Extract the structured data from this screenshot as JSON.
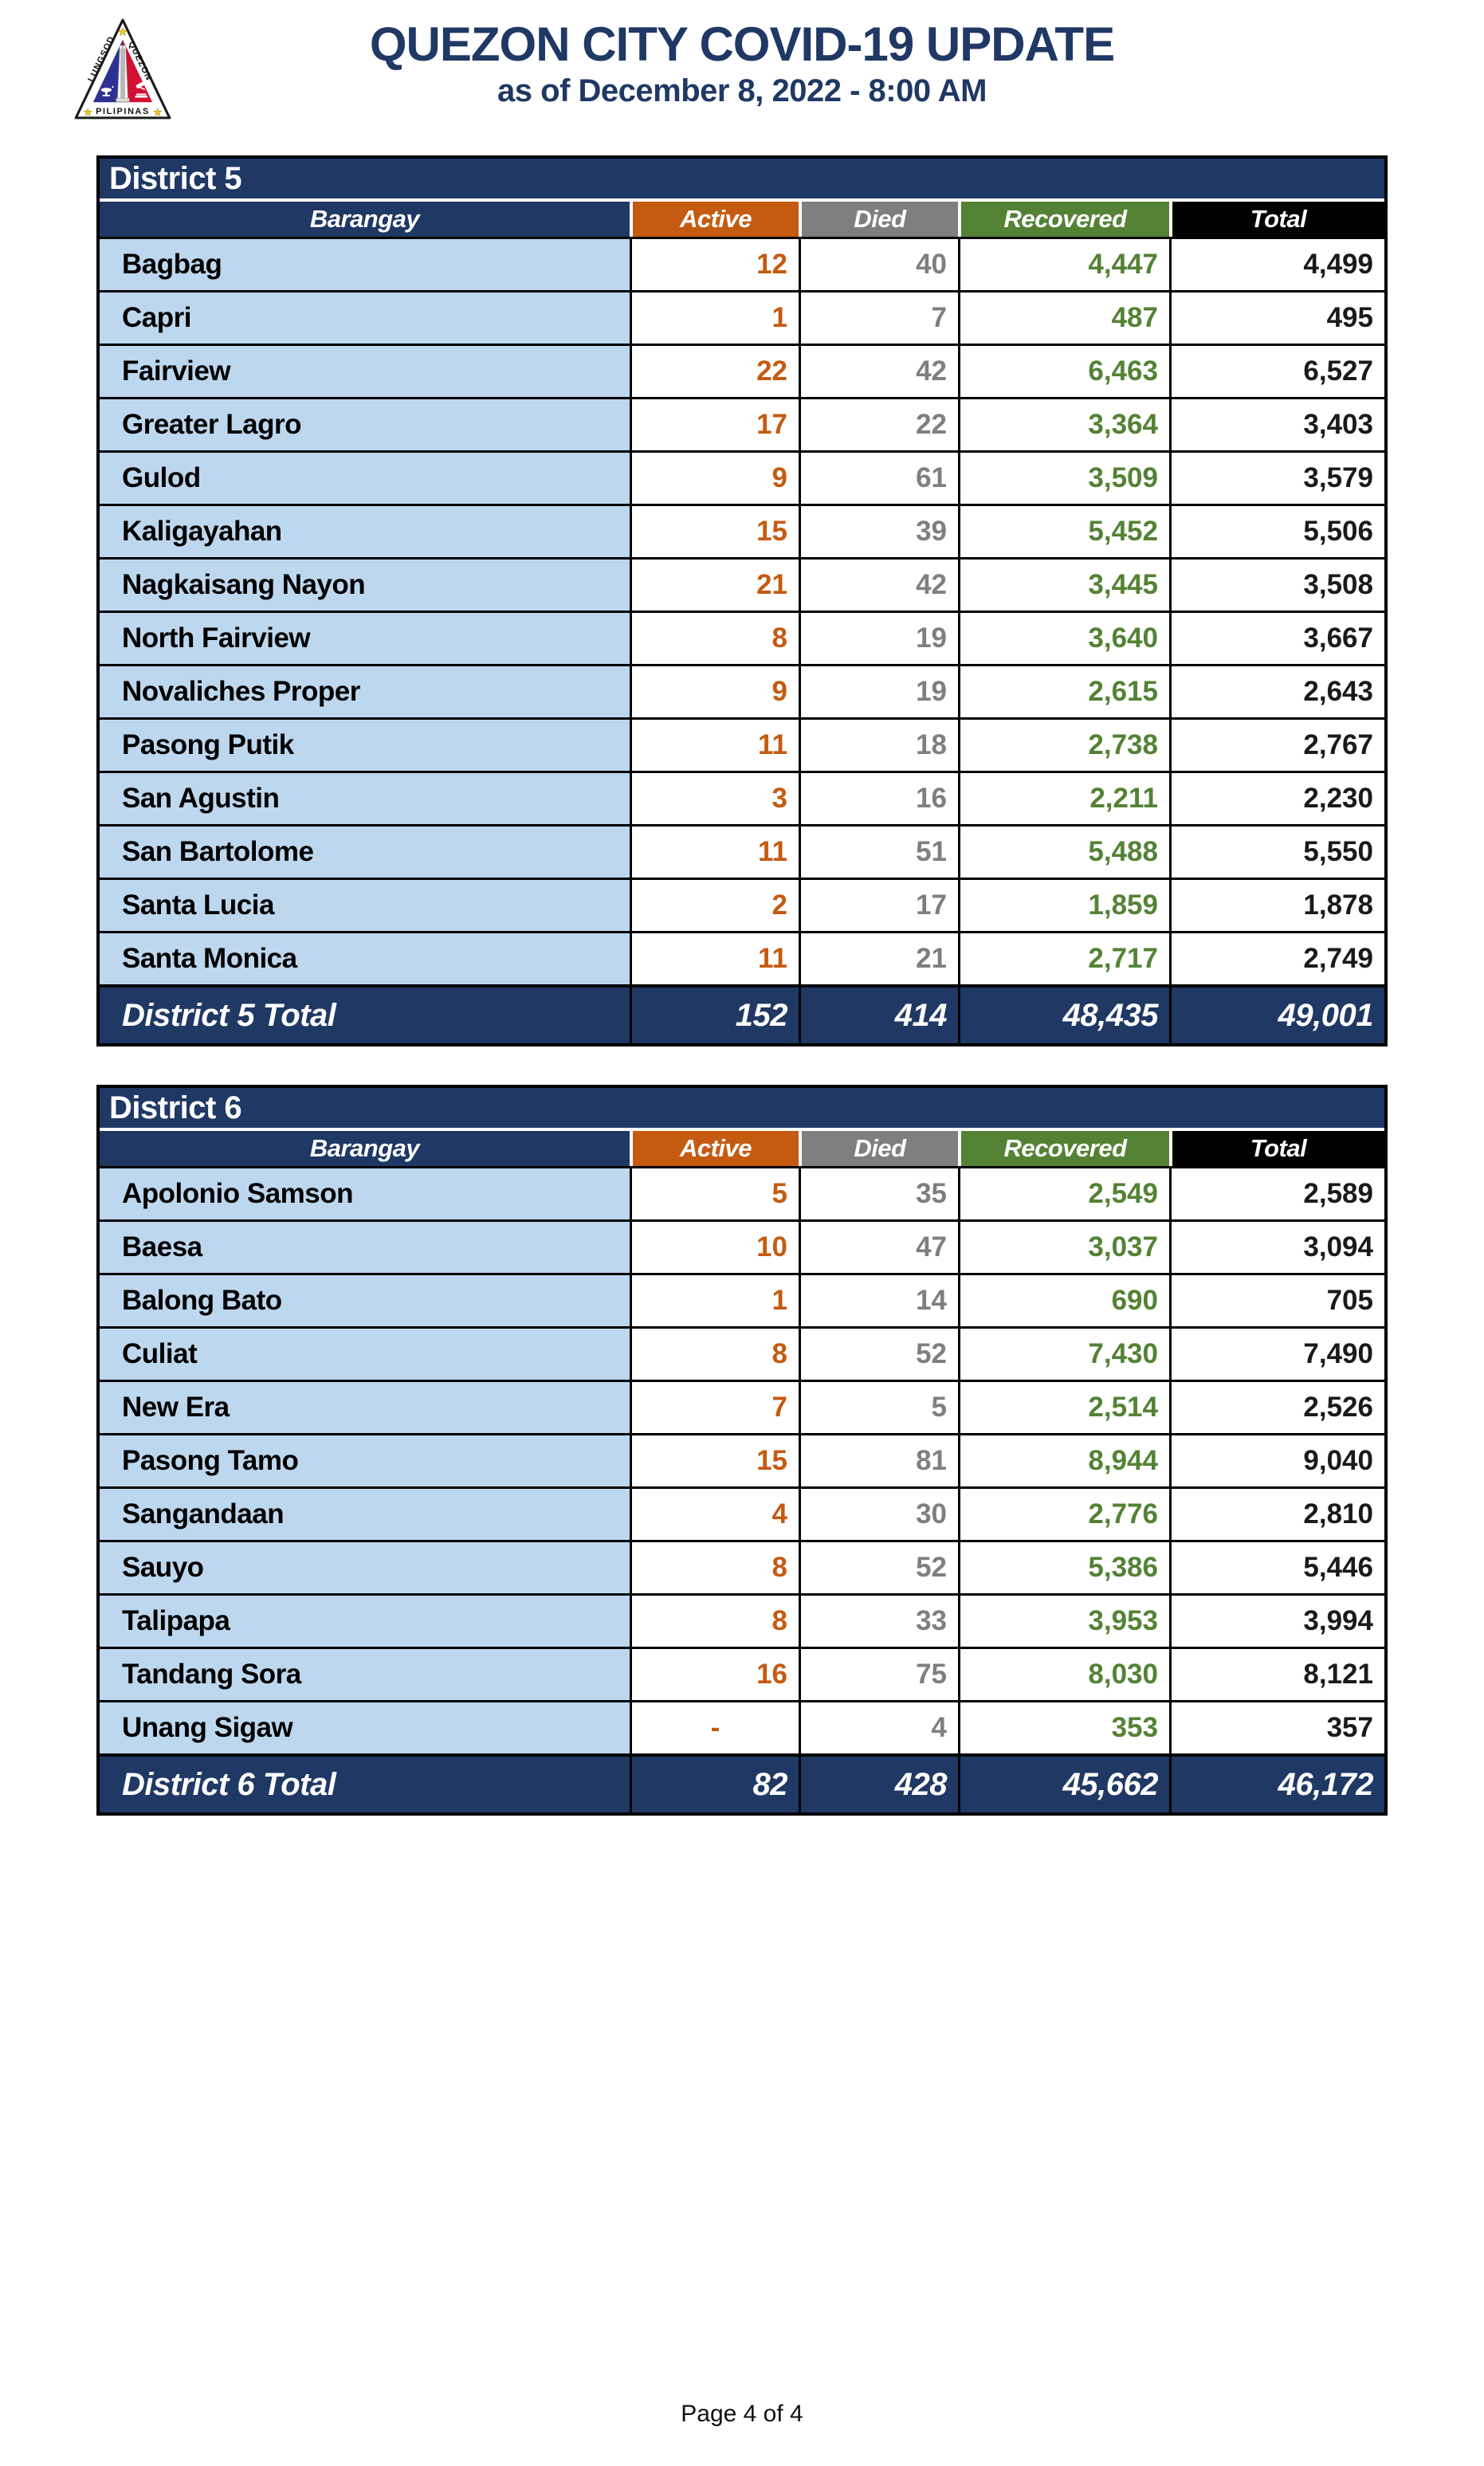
{
  "header": {
    "title": "QUEZON CITY COVID-19 UPDATE",
    "subtitle": "as of December 8, 2022 - 8:00 AM",
    "logo": {
      "left_text": "LUNGSOD",
      "right_text": "QUEZON",
      "bottom_text": "PILIPINAS"
    }
  },
  "columns": {
    "barangay": "Barangay",
    "active": "Active",
    "died": "Died",
    "recovered": "Recovered",
    "total": "Total"
  },
  "colors": {
    "navy": "#1F3864",
    "title_blue": "#1F3864",
    "orange": "#C55A11",
    "gray": "#7F7F7F",
    "green": "#548235",
    "light_blue": "#BDD7EE",
    "header_total_black": "#000000",
    "seal_blue": "#2E3192",
    "seal_red": "#D21034",
    "seal_star_yellow": "#FFCC00"
  },
  "tables": [
    {
      "district": "District 5",
      "total_label": "District 5 Total",
      "rows": [
        [
          "Bagbag",
          "12",
          "40",
          "4,447",
          "4,499"
        ],
        [
          "Capri",
          "1",
          "7",
          "487",
          "495"
        ],
        [
          "Fairview",
          "22",
          "42",
          "6,463",
          "6,527"
        ],
        [
          "Greater Lagro",
          "17",
          "22",
          "3,364",
          "3,403"
        ],
        [
          "Gulod",
          "9",
          "61",
          "3,509",
          "3,579"
        ],
        [
          "Kaligayahan",
          "15",
          "39",
          "5,452",
          "5,506"
        ],
        [
          "Nagkaisang Nayon",
          "21",
          "42",
          "3,445",
          "3,508"
        ],
        [
          "North Fairview",
          "8",
          "19",
          "3,640",
          "3,667"
        ],
        [
          "Novaliches Proper",
          "9",
          "19",
          "2,615",
          "2,643"
        ],
        [
          "Pasong Putik",
          "11",
          "18",
          "2,738",
          "2,767"
        ],
        [
          "San Agustin",
          "3",
          "16",
          "2,211",
          "2,230"
        ],
        [
          "San Bartolome",
          "11",
          "51",
          "5,488",
          "5,550"
        ],
        [
          "Santa Lucia",
          "2",
          "17",
          "1,859",
          "1,878"
        ],
        [
          "Santa Monica",
          "11",
          "21",
          "2,717",
          "2,749"
        ]
      ],
      "totals": [
        "152",
        "414",
        "48,435",
        "49,001"
      ]
    },
    {
      "district": "District 6",
      "total_label": "District 6 Total",
      "rows": [
        [
          "Apolonio Samson",
          "5",
          "35",
          "2,549",
          "2,589"
        ],
        [
          "Baesa",
          "10",
          "47",
          "3,037",
          "3,094"
        ],
        [
          "Balong Bato",
          "1",
          "14",
          "690",
          "705"
        ],
        [
          "Culiat",
          "8",
          "52",
          "7,430",
          "7,490"
        ],
        [
          "New Era",
          "7",
          "5",
          "2,514",
          "2,526"
        ],
        [
          "Pasong Tamo",
          "15",
          "81",
          "8,944",
          "9,040"
        ],
        [
          "Sangandaan",
          "4",
          "30",
          "2,776",
          "2,810"
        ],
        [
          "Sauyo",
          "8",
          "52",
          "5,386",
          "5,446"
        ],
        [
          "Talipapa",
          "8",
          "33",
          "3,953",
          "3,994"
        ],
        [
          "Tandang Sora",
          "16",
          "75",
          "8,030",
          "8,121"
        ],
        [
          "Unang Sigaw",
          "-",
          "4",
          "353",
          "357"
        ]
      ],
      "totals": [
        "82",
        "428",
        "45,662",
        "46,172"
      ]
    }
  ],
  "footer": {
    "page_label": "Page 4 of 4"
  }
}
